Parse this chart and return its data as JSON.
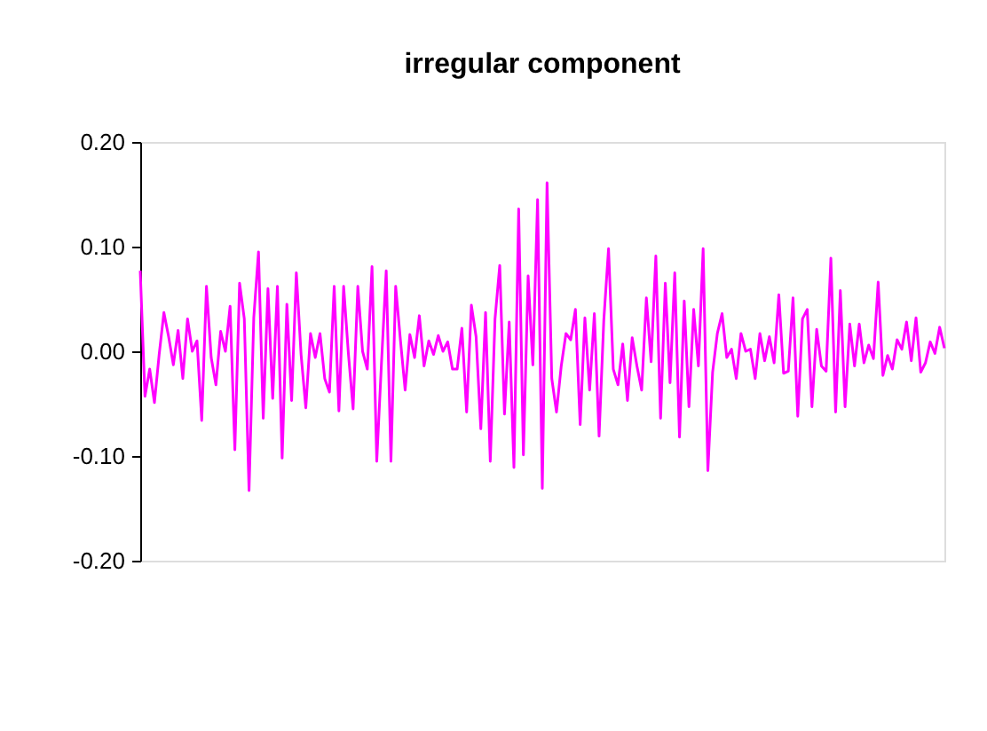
{
  "chart_data": {
    "type": "line",
    "title": "irregular component",
    "categories": [
      null,
      null,
      null,
      null,
      null,
      null,
      null,
      null,
      null,
      null,
      null,
      null,
      null,
      null,
      null,
      null,
      null,
      null,
      null,
      null,
      null,
      null,
      null,
      null,
      null,
      null,
      null,
      null,
      null,
      null,
      null,
      null,
      null,
      null,
      null,
      null,
      null,
      null,
      null,
      null,
      null,
      null,
      null,
      null,
      null,
      null,
      null,
      null,
      null,
      null,
      null,
      null,
      null,
      null,
      null,
      null,
      null,
      null,
      null,
      null,
      null,
      null,
      null,
      null,
      null,
      null,
      null,
      null,
      null,
      null,
      null,
      null,
      null,
      null,
      null,
      null,
      null,
      null,
      null,
      null,
      null,
      null,
      null,
      null,
      null,
      null,
      null,
      null,
      null,
      null,
      null,
      null,
      null,
      null,
      null,
      null,
      null,
      null,
      null,
      null,
      null,
      null,
      null,
      null,
      null,
      null,
      null,
      null,
      null,
      null,
      null,
      null,
      null,
      null,
      null,
      null,
      null,
      null,
      null,
      null,
      null,
      null,
      null,
      null,
      null,
      null,
      null,
      null,
      null,
      null,
      null,
      null,
      null,
      null,
      null,
      null,
      null,
      null,
      null,
      null,
      null,
      null,
      null,
      null,
      null,
      null,
      null,
      null,
      null,
      null,
      null,
      null,
      null,
      null,
      null,
      null,
      null,
      null,
      null,
      null,
      null,
      null,
      null,
      null,
      null,
      null,
      null,
      null,
      null,
      null,
      null
    ],
    "series": [
      {
        "color": "#ff00ff",
        "values": [
          0.077,
          -0.043,
          -0.017,
          -0.049,
          -0.003,
          0.037,
          0.014,
          -0.013,
          0.02,
          -0.026,
          0.031,
          0.0,
          0.01,
          -0.066,
          0.062,
          -0.006,
          -0.032,
          0.019,
          0.0,
          0.043,
          -0.094,
          0.065,
          0.031,
          -0.133,
          0.032,
          0.095,
          -0.064,
          0.06,
          -0.045,
          0.062,
          -0.102,
          0.045,
          -0.047,
          0.075,
          -0.003,
          -0.054,
          0.017,
          -0.006,
          0.017,
          -0.026,
          -0.039,
          0.062,
          -0.057,
          0.062,
          -0.002,
          -0.055,
          0.062,
          0.0,
          -0.017,
          0.081,
          -0.105,
          -0.011,
          0.077,
          -0.105,
          0.062,
          0.011,
          -0.037,
          0.016,
          -0.006,
          0.034,
          -0.014,
          0.01,
          -0.003,
          0.015,
          0.0,
          0.009,
          -0.017,
          -0.017,
          0.022,
          -0.058,
          0.044,
          0.014,
          -0.074,
          0.037,
          -0.105,
          0.031,
          0.082,
          -0.06,
          0.028,
          -0.111,
          0.136,
          -0.099,
          0.072,
          -0.013,
          0.145,
          -0.131,
          0.161,
          -0.026,
          -0.058,
          -0.014,
          0.017,
          0.011,
          0.04,
          -0.07,
          0.032,
          -0.037,
          0.036,
          -0.081,
          0.03,
          0.098,
          -0.017,
          -0.032,
          0.007,
          -0.047,
          0.013,
          -0.014,
          -0.037,
          0.051,
          -0.01,
          0.091,
          -0.064,
          0.065,
          -0.03,
          0.075,
          -0.082,
          0.048,
          -0.053,
          0.04,
          -0.014,
          0.098,
          -0.114,
          -0.02,
          0.017,
          0.036,
          -0.006,
          0.002,
          -0.026,
          0.017,
          0.0,
          0.002,
          -0.026,
          0.017,
          -0.009,
          0.014,
          -0.011,
          0.054,
          -0.021,
          -0.019,
          0.051,
          -0.062,
          0.031,
          0.04,
          -0.053,
          0.021,
          -0.014,
          -0.019,
          0.089,
          -0.058,
          0.058,
          -0.053,
          0.026,
          -0.014,
          0.026,
          -0.011,
          0.006,
          -0.007,
          0.066,
          -0.023,
          -0.004,
          -0.017,
          0.011,
          0.002,
          0.028,
          -0.009,
          0.032,
          -0.02,
          -0.011,
          0.009,
          -0.002,
          0.023,
          0.003
        ]
      }
    ],
    "ylim": [
      -0.2,
      0.2
    ],
    "yticks": [
      {
        "value": -0.2,
        "label": "-0.20"
      },
      {
        "value": -0.1,
        "label": "-0.10"
      },
      {
        "value": 0.0,
        "label": "0.00"
      },
      {
        "value": 0.1,
        "label": "0.10"
      },
      {
        "value": 0.2,
        "label": "0.20"
      }
    ],
    "tick_labels": "y",
    "grid": false,
    "marker": "none",
    "line_style": "solid"
  }
}
